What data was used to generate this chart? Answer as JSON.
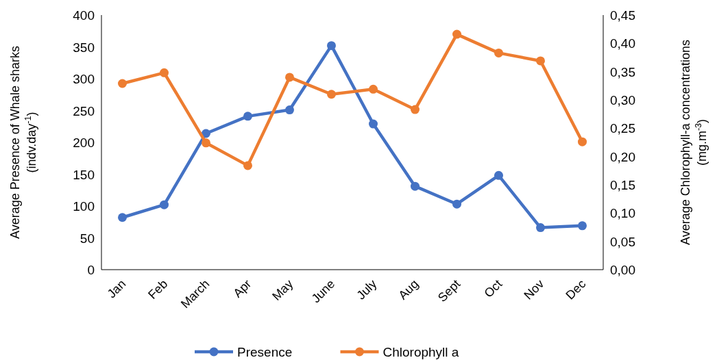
{
  "chart_data": {
    "type": "line",
    "categories": [
      "Jan",
      "Feb",
      "March",
      "Apr",
      "May",
      "June",
      "July",
      "Aug",
      "Sept",
      "Oct",
      "Nov",
      "Dec"
    ],
    "series": [
      {
        "name": "Presence",
        "color": "#4472c4",
        "values": [
          82,
          102,
          214,
          241,
          251,
          352,
          229,
          131,
          103,
          148,
          66,
          69
        ]
      },
      {
        "name": "Chlorophyll a",
        "color": "#ed7d31",
        "axis": "y2",
        "values": [
          0.329,
          0.348,
          0.224,
          0.184,
          0.34,
          0.31,
          0.319,
          0.283,
          0.416,
          0.383,
          0.369,
          0.226
        ]
      }
    ],
    "ylabel": "Average Presence of Whale sharks\n(indv.day$^{-1}$)",
    "y2label": "Average Chlorophyll-a concentrations\n(mg.m$^{-3}$)",
    "ylim": [
      0,
      400
    ],
    "yticks": [
      0,
      50,
      100,
      150,
      200,
      250,
      300,
      350,
      400
    ],
    "y2lim": [
      0,
      0.45
    ],
    "y2ticks": [
      {
        "value": 0,
        "label": "0,00"
      },
      {
        "value": 0.05,
        "label": "0,05"
      },
      {
        "value": 0.1,
        "label": "0,10"
      },
      {
        "value": 0.15,
        "label": "0,15"
      },
      {
        "value": 0.2,
        "label": "0,20"
      },
      {
        "value": 0.25,
        "label": "0,25"
      },
      {
        "value": 0.3,
        "label": "0,30"
      },
      {
        "value": 0.35,
        "label": "0,35"
      },
      {
        "value": 0.4,
        "label": "0,40"
      },
      {
        "value": 0.45,
        "label": "0,45"
      }
    ],
    "legend": "bottom",
    "marker": "circle",
    "line_style": "solid"
  }
}
